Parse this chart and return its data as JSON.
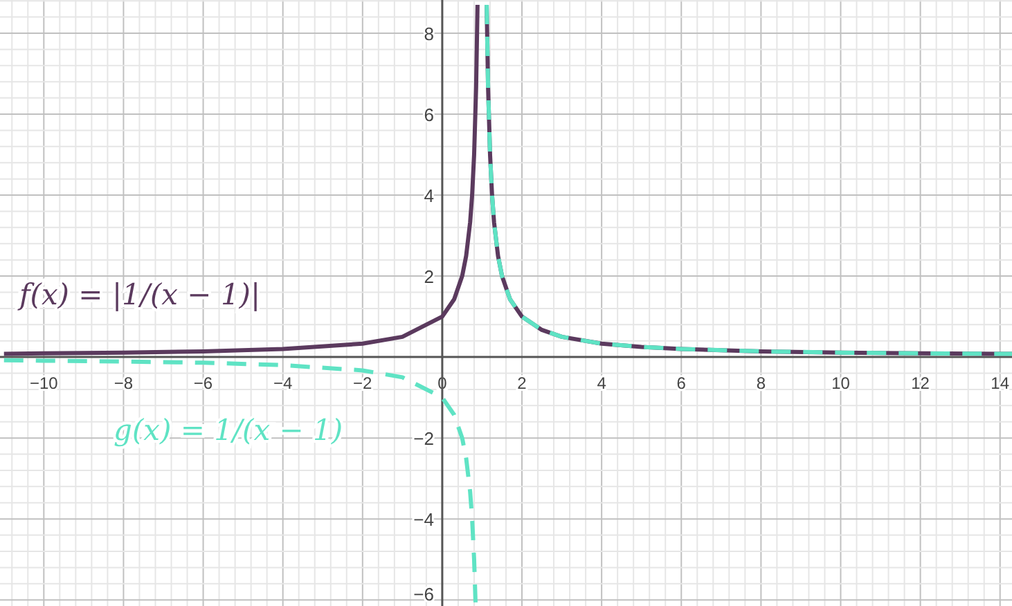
{
  "chart_data": {
    "type": "line",
    "xlim": [
      -11.1,
      14.3
    ],
    "ylim": [
      -6.15,
      8.82
    ],
    "grid": true,
    "marker": "none",
    "xticks": [
      {
        "value": -10.8,
        "label": null
      },
      {
        "value": -10.4,
        "label": null
      },
      {
        "value": -10,
        "label": "−10"
      },
      {
        "value": -9.6,
        "label": null
      },
      {
        "value": -9.2,
        "label": null
      },
      {
        "value": -8.8,
        "label": null
      },
      {
        "value": -8.4,
        "label": null
      },
      {
        "value": -8,
        "label": "−8"
      },
      {
        "value": -7.6,
        "label": null
      },
      {
        "value": -7.2,
        "label": null
      },
      {
        "value": -6.8,
        "label": null
      },
      {
        "value": -6.4,
        "label": null
      },
      {
        "value": -6,
        "label": "−6"
      },
      {
        "value": -5.6,
        "label": null
      },
      {
        "value": -5.2,
        "label": null
      },
      {
        "value": -4.8,
        "label": null
      },
      {
        "value": -4.4,
        "label": null
      },
      {
        "value": -4,
        "label": "−4"
      },
      {
        "value": -3.6,
        "label": null
      },
      {
        "value": -3.2,
        "label": null
      },
      {
        "value": -2.8,
        "label": null
      },
      {
        "value": -2.4,
        "label": null
      },
      {
        "value": -2,
        "label": "−2"
      },
      {
        "value": -1.6,
        "label": null
      },
      {
        "value": -1.2,
        "label": null
      },
      {
        "value": -0.8,
        "label": null
      },
      {
        "value": -0.4,
        "label": null
      },
      0,
      {
        "value": 0.4,
        "label": null
      },
      {
        "value": 0.8,
        "label": null
      },
      {
        "value": 1.2,
        "label": null
      },
      {
        "value": 1.6,
        "label": null
      },
      2,
      {
        "value": 2.4,
        "label": null
      },
      {
        "value": 2.8,
        "label": null
      },
      {
        "value": 3.2,
        "label": null
      },
      {
        "value": 3.6,
        "label": null
      },
      4,
      {
        "value": 4.4,
        "label": null
      },
      {
        "value": 4.8,
        "label": null
      },
      {
        "value": 5.2,
        "label": null
      },
      {
        "value": 5.6,
        "label": null
      },
      6,
      {
        "value": 6.4,
        "label": null
      },
      {
        "value": 6.8,
        "label": null
      },
      {
        "value": 7.2,
        "label": null
      },
      {
        "value": 7.6,
        "label": null
      },
      8,
      {
        "value": 8.4,
        "label": null
      },
      {
        "value": 8.8,
        "label": null
      },
      {
        "value": 9.2,
        "label": null
      },
      {
        "value": 9.6,
        "label": null
      },
      10,
      {
        "value": 10.4,
        "label": null
      },
      {
        "value": 10.8,
        "label": null
      },
      {
        "value": 11.2,
        "label": null
      },
      {
        "value": 11.6,
        "label": null
      },
      12,
      {
        "value": 12.4,
        "label": null
      },
      {
        "value": 12.8,
        "label": null
      },
      {
        "value": 13.2,
        "label": null
      },
      {
        "value": 13.6,
        "label": null
      },
      14
    ],
    "yticks": [
      {
        "value": -6,
        "label": "−6"
      },
      {
        "value": -5.6,
        "label": null
      },
      {
        "value": -5.2,
        "label": null
      },
      {
        "value": -4.8,
        "label": null
      },
      {
        "value": -4.4,
        "label": null
      },
      {
        "value": -4,
        "label": "−4"
      },
      {
        "value": -3.6,
        "label": null
      },
      {
        "value": -3.2,
        "label": null
      },
      {
        "value": -2.8,
        "label": null
      },
      {
        "value": -2.4,
        "label": null
      },
      {
        "value": -2,
        "label": "−2"
      },
      {
        "value": -1.6,
        "label": null
      },
      {
        "value": -1.2,
        "label": null
      },
      {
        "value": -0.8,
        "label": null
      },
      {
        "value": -0.4,
        "label": null
      },
      {
        "value": 0.4,
        "label": null
      },
      {
        "value": 0.8,
        "label": null
      },
      {
        "value": 1.2,
        "label": null
      },
      {
        "value": 1.6,
        "label": null
      },
      2,
      {
        "value": 2.4,
        "label": null
      },
      {
        "value": 2.8,
        "label": null
      },
      {
        "value": 3.2,
        "label": null
      },
      {
        "value": 3.6,
        "label": null
      },
      4,
      {
        "value": 4.4,
        "label": null
      },
      {
        "value": 4.8,
        "label": null
      },
      {
        "value": 5.2,
        "label": null
      },
      {
        "value": 5.6,
        "label": null
      },
      6,
      {
        "value": 6.4,
        "label": null
      },
      {
        "value": 6.8,
        "label": null
      },
      {
        "value": 7.2,
        "label": null
      },
      {
        "value": 7.6,
        "label": null
      },
      8,
      {
        "value": 8.4,
        "label": null
      },
      {
        "value": 8.8,
        "label": null
      }
    ],
    "series": [
      {
        "name": "f(x) = |1/(x − 1)|",
        "color": "#5b3a5e",
        "line_style": "solid",
        "x": [
          -11,
          -10,
          -8,
          -6,
          -4,
          -2,
          -1,
          0,
          0.3,
          0.5,
          0.6,
          0.7,
          0.75,
          0.8,
          0.85,
          0.885,
          1,
          1.115,
          1.15,
          1.2,
          1.25,
          1.3,
          1.4,
          1.5,
          1.7,
          2,
          2.5,
          3,
          4,
          5,
          6,
          8,
          10,
          12,
          14,
          14.3
        ],
        "values": [
          0.08,
          0.09,
          0.11,
          0.14,
          0.2,
          0.33,
          0.5,
          1,
          1.43,
          2,
          2.5,
          3.33,
          4,
          5,
          6.67,
          8.7,
          null,
          8.7,
          6.67,
          5,
          4,
          3.33,
          2.5,
          2,
          1.43,
          1,
          0.67,
          0.5,
          0.33,
          0.25,
          0.2,
          0.14,
          0.11,
          0.09,
          0.08,
          0.08
        ]
      },
      {
        "name": "g(x) = 1/(x − 1)",
        "color": "#5fe3c4",
        "line_style": "dashed",
        "x": [
          -11,
          -10,
          -8,
          -6,
          -4,
          -2,
          -1,
          0,
          0.3,
          0.5,
          0.6,
          0.7,
          0.75,
          0.8,
          0.835,
          1,
          1.115,
          1.15,
          1.2,
          1.25,
          1.3,
          1.4,
          1.5,
          1.7,
          2,
          2.5,
          3,
          4,
          5,
          6,
          8,
          10,
          12,
          14,
          14.3
        ],
        "values": [
          -0.08,
          -0.09,
          -0.11,
          -0.14,
          -0.2,
          -0.33,
          -0.5,
          -1,
          -1.43,
          -2,
          -2.5,
          -3.33,
          -4,
          -5,
          -6.06,
          null,
          8.7,
          6.67,
          5,
          4,
          3.33,
          2.5,
          2,
          1.43,
          1,
          0.67,
          0.5,
          0.33,
          0.25,
          0.2,
          0.14,
          0.11,
          0.09,
          0.08,
          0.08
        ]
      }
    ]
  }
}
